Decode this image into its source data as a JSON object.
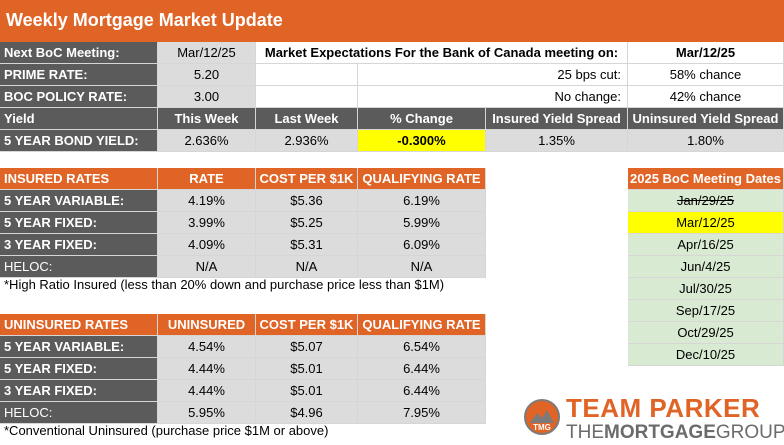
{
  "title": "Weekly Mortgage Market Update",
  "top": {
    "next_boc_label": "Next BoC Meeting:",
    "next_boc_value": "Mar/12/25",
    "expectations_label": "Market Expectations For the Bank of Canada meeting on:",
    "expectations_date": "Mar/12/25",
    "prime_label": "PRIME RATE:",
    "prime_value": "5.20",
    "cut_label": "25 bps cut:",
    "cut_value": "58% chance",
    "policy_label": "BOC POLICY RATE:",
    "policy_value": "3.00",
    "nochange_label": "No change:",
    "nochange_value": "42% chance"
  },
  "yield": {
    "headers": [
      "Yield",
      "This Week",
      "Last Week",
      "% Change",
      "Insured Yield Spread",
      "Uninsured Yield Spread"
    ],
    "row": [
      "5 YEAR BOND YIELD:",
      "2.636%",
      "2.936%",
      "-0.300%",
      "1.35%",
      "1.80%"
    ]
  },
  "insured": {
    "headers": [
      "INSURED RATES",
      "RATE",
      "COST PER $1K",
      "QUALIFYING RATE"
    ],
    "rows": [
      [
        "5 YEAR VARIABLE:",
        "4.19%",
        "$5.36",
        "6.19%"
      ],
      [
        "5 YEAR FIXED:",
        "3.99%",
        "$5.25",
        "5.99%"
      ],
      [
        "3 YEAR FIXED:",
        "4.09%",
        "$5.31",
        "6.09%"
      ],
      [
        "HELOC:",
        "N/A",
        "N/A",
        "N/A"
      ]
    ],
    "note": "*High Ratio Insured (less than 20% down and purchase price less than $1M)"
  },
  "uninsured": {
    "headers": [
      "UNINSURED RATES",
      "UNINSURED",
      "COST PER $1K",
      "QUALIFYING RATE"
    ],
    "rows": [
      [
        "5 YEAR VARIABLE:",
        "4.54%",
        "$5.07",
        "6.54%"
      ],
      [
        "5 YEAR FIXED:",
        "4.44%",
        "$5.01",
        "6.44%"
      ],
      [
        "3 YEAR FIXED:",
        "4.44%",
        "$5.01",
        "6.44%"
      ],
      [
        "HELOC:",
        "5.95%",
        "$4.96",
        "7.95%"
      ]
    ],
    "note": "*Conventional Uninsured (purchase price $1M or above)"
  },
  "meetings": {
    "header": "2025 BoC Meeting Dates",
    "dates": [
      "Jan/29/25",
      "Mar/12/25",
      "Apr/16/25",
      "Jun/4/25",
      "Jul/30/25",
      "Sep/17/25",
      "Oct/29/25",
      "Dec/10/25"
    ]
  },
  "logo": {
    "line1": "TEAM PARKER",
    "line2a": "THE",
    "line2b": "MORTGAGE",
    "line2c": "GROUP",
    "mark": "TMG"
  },
  "colors": {
    "orange": "#e06426",
    "dark_label": "#5b5b5b",
    "gray_cell": "#dcdcdc",
    "yellow": "#ffff00",
    "green": "#d8ead2"
  }
}
